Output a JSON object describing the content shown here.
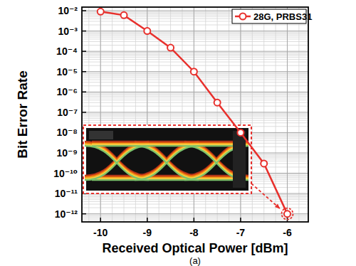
{
  "chart_data": {
    "type": "line",
    "x_label": "Received Optical Power [dBm]",
    "y_label": "Bit Error Rate",
    "caption": "(a)",
    "x": [
      -10,
      -9.5,
      -9,
      -8.5,
      -8,
      -7.5,
      -7,
      -6.5,
      -6
    ],
    "series": [
      {
        "name": "28G, PRBS31",
        "color": "#e8302c",
        "marker": "circle",
        "line_style": "solid",
        "values": [
          0.009,
          0.006,
          0.001,
          0.00015,
          1e-05,
          3e-07,
          1e-08,
          3e-10,
          1e-12
        ]
      }
    ],
    "xlim": [
      -10.4,
      -5.55
    ],
    "xticks": [
      -10,
      -9,
      -8,
      -7,
      -6
    ],
    "ylim": [
      4e-13,
      0.015
    ],
    "yticks": [
      {
        "value": 1e-12,
        "label": "10⁻¹²"
      },
      {
        "value": 1e-11,
        "label": "10⁻¹¹"
      },
      {
        "value": 1e-10,
        "label": "10⁻¹⁰"
      },
      {
        "value": 1e-09,
        "label": "10⁻⁹"
      },
      {
        "value": 1e-08,
        "label": "10⁻⁸"
      },
      {
        "value": 1e-07,
        "label": "10⁻⁷"
      },
      {
        "value": 1e-06,
        "label": "10⁻⁶"
      },
      {
        "value": 1e-05,
        "label": "10⁻⁵"
      },
      {
        "value": 0.0001,
        "label": "10⁻⁴"
      },
      {
        "value": 0.001,
        "label": "10⁻³"
      },
      {
        "value": 0.01,
        "label": "10⁻²"
      }
    ],
    "log": "y",
    "grid": true,
    "legend": "upper right"
  }
}
